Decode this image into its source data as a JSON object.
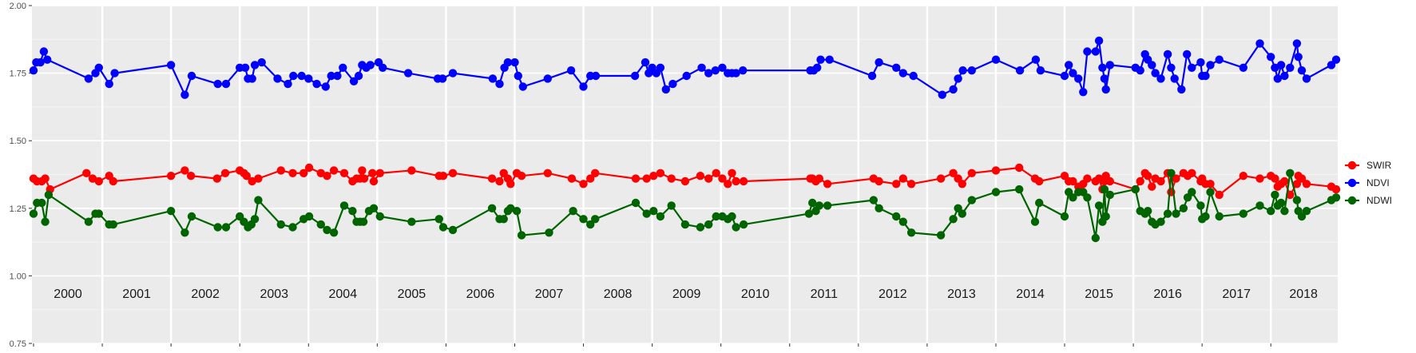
{
  "chart_data": {
    "type": "line",
    "title": "",
    "xlabel": "",
    "ylabel": "",
    "xlim": [
      2000.0,
      2018.95
    ],
    "ylim": [
      0.75,
      2.0
    ],
    "yticks": [
      "0.75",
      "1.00",
      "1.25",
      "1.50",
      "1.75",
      "2.00"
    ],
    "year_labels": [
      "2000",
      "2001",
      "2002",
      "2003",
      "2004",
      "2005",
      "2006",
      "2007",
      "2008",
      "2009",
      "2010",
      "2011",
      "2012",
      "2013",
      "2014",
      "2015",
      "2016",
      "2017",
      "2018"
    ],
    "grid": true,
    "legend_position": "right",
    "series": [
      {
        "name": "SWIR",
        "color": "#ff0000",
        "x": [
          2000.0,
          2000.05,
          2000.12,
          2000.17,
          2000.24,
          2000.77,
          2000.86,
          2000.95,
          2001.1,
          2001.16,
          2002.0,
          2002.2,
          2002.29,
          2002.67,
          2002.79,
          2003.0,
          2003.06,
          2003.1,
          2003.18,
          2003.27,
          2003.6,
          2003.77,
          2003.93,
          2004.01,
          2004.18,
          2004.27,
          2004.37,
          2004.52,
          2004.64,
          2004.7,
          2004.75,
          2004.78,
          2004.81,
          2004.93,
          2004.95,
          2005.04,
          2005.5,
          2005.9,
          2005.96,
          2006.1,
          2006.67,
          2006.78,
          2006.84,
          2006.9,
          2006.94,
          2007.03,
          2007.1,
          2007.48,
          2007.83,
          2008.0,
          2008.1,
          2008.17,
          2008.76,
          2008.92,
          2009.02,
          2009.12,
          2009.28,
          2009.48,
          2009.7,
          2009.82,
          2009.93,
          2010.02,
          2010.1,
          2010.16,
          2010.22,
          2010.33,
          2011.3,
          2011.33,
          2011.38,
          2011.43,
          2011.55,
          2012.22,
          2012.3,
          2012.55,
          2012.65,
          2012.77,
          2013.2,
          2013.38,
          2013.45,
          2013.51,
          2013.65,
          2014.0,
          2014.34,
          2014.57,
          2014.63,
          2015.0,
          2015.06,
          2015.12,
          2015.2,
          2015.27,
          2015.33,
          2015.45,
          2015.5,
          2015.55,
          2015.58,
          2015.6,
          2015.66,
          2016.03,
          2016.1,
          2016.17,
          2016.21,
          2016.27,
          2016.32,
          2016.4,
          2016.5,
          2016.55,
          2016.62,
          2016.73,
          2016.79,
          2016.85,
          2016.98,
          2017.0,
          2017.05,
          2017.12,
          2017.25,
          2017.6,
          2017.84,
          2018.0,
          2018.06,
          2018.1,
          2018.15,
          2018.2,
          2018.28,
          2018.38,
          2018.4,
          2018.45,
          2018.52,
          2018.88,
          2018.95
        ],
        "y": [
          1.36,
          1.35,
          1.35,
          1.36,
          1.32,
          1.38,
          1.36,
          1.35,
          1.37,
          1.35,
          1.37,
          1.39,
          1.37,
          1.36,
          1.38,
          1.39,
          1.38,
          1.37,
          1.35,
          1.36,
          1.39,
          1.38,
          1.38,
          1.4,
          1.38,
          1.37,
          1.39,
          1.38,
          1.35,
          1.36,
          1.36,
          1.39,
          1.36,
          1.38,
          1.35,
          1.38,
          1.39,
          1.37,
          1.37,
          1.38,
          1.36,
          1.35,
          1.38,
          1.36,
          1.34,
          1.38,
          1.37,
          1.38,
          1.36,
          1.34,
          1.36,
          1.38,
          1.36,
          1.36,
          1.37,
          1.38,
          1.36,
          1.35,
          1.37,
          1.36,
          1.38,
          1.36,
          1.34,
          1.38,
          1.35,
          1.35,
          1.36,
          1.36,
          1.35,
          1.36,
          1.34,
          1.36,
          1.35,
          1.34,
          1.36,
          1.34,
          1.36,
          1.38,
          1.36,
          1.34,
          1.38,
          1.39,
          1.4,
          1.36,
          1.35,
          1.37,
          1.35,
          1.35,
          1.33,
          1.34,
          1.36,
          1.35,
          1.36,
          1.32,
          1.35,
          1.37,
          1.35,
          1.32,
          1.35,
          1.38,
          1.37,
          1.33,
          1.36,
          1.35,
          1.38,
          1.31,
          1.36,
          1.38,
          1.37,
          1.38,
          1.35,
          1.36,
          1.34,
          1.34,
          1.3,
          1.37,
          1.36,
          1.37,
          1.36,
          1.33,
          1.34,
          1.35,
          1.3,
          1.34,
          1.37,
          1.36,
          1.34,
          1.33,
          1.32
        ],
        "_note": ""
      },
      {
        "name": "NDVI",
        "color": "#0000ff",
        "x": [
          2000.0,
          2000.04,
          2000.1,
          2000.15,
          2000.2,
          2000.8,
          2000.9,
          2000.95,
          2001.1,
          2001.18,
          2002.0,
          2002.2,
          2002.3,
          2002.68,
          2002.8,
          2003.0,
          2003.08,
          2003.12,
          2003.18,
          2003.22,
          2003.32,
          2003.55,
          2003.7,
          2003.78,
          2003.9,
          2004.0,
          2004.12,
          2004.25,
          2004.33,
          2004.42,
          2004.5,
          2004.66,
          2004.73,
          2004.78,
          2004.84,
          2004.9,
          2005.02,
          2005.08,
          2005.45,
          2005.88,
          2005.95,
          2006.1,
          2006.68,
          2006.78,
          2006.85,
          2006.9,
          2007.0,
          2007.05,
          2007.12,
          2007.48,
          2007.82,
          2008.0,
          2008.1,
          2008.18,
          2008.75,
          2008.9,
          2008.95,
          2009.0,
          2009.06,
          2009.12,
          2009.2,
          2009.3,
          2009.5,
          2009.72,
          2009.82,
          2009.92,
          2010.02,
          2010.1,
          2010.16,
          2010.22,
          2010.32,
          2011.3,
          2011.35,
          2011.4,
          2011.45,
          2011.58,
          2012.2,
          2012.3,
          2012.55,
          2012.65,
          2012.8,
          2013.22,
          2013.38,
          2013.45,
          2013.52,
          2013.65,
          2014.0,
          2014.35,
          2014.58,
          2014.65,
          2015.0,
          2015.06,
          2015.12,
          2015.2,
          2015.27,
          2015.33,
          2015.45,
          2015.5,
          2015.55,
          2015.58,
          2015.6,
          2015.66,
          2016.03,
          2016.1,
          2016.17,
          2016.21,
          2016.27,
          2016.32,
          2016.4,
          2016.5,
          2016.55,
          2016.6,
          2016.7,
          2016.78,
          2016.85,
          2016.98,
          2017.0,
          2017.05,
          2017.12,
          2017.25,
          2017.6,
          2017.84,
          2018.0,
          2018.06,
          2018.1,
          2018.15,
          2018.2,
          2018.28,
          2018.38,
          2018.4,
          2018.45,
          2018.52,
          2018.88,
          2018.95
        ],
        "y": [
          1.76,
          1.79,
          1.79,
          1.83,
          1.8,
          1.73,
          1.75,
          1.77,
          1.71,
          1.75,
          1.78,
          1.67,
          1.74,
          1.71,
          1.71,
          1.77,
          1.77,
          1.73,
          1.73,
          1.78,
          1.79,
          1.73,
          1.71,
          1.74,
          1.74,
          1.73,
          1.71,
          1.7,
          1.74,
          1.74,
          1.77,
          1.72,
          1.74,
          1.78,
          1.77,
          1.78,
          1.79,
          1.77,
          1.75,
          1.73,
          1.73,
          1.75,
          1.73,
          1.71,
          1.77,
          1.79,
          1.79,
          1.74,
          1.7,
          1.73,
          1.76,
          1.7,
          1.74,
          1.74,
          1.74,
          1.79,
          1.75,
          1.77,
          1.75,
          1.77,
          1.69,
          1.71,
          1.74,
          1.77,
          1.75,
          1.76,
          1.77,
          1.75,
          1.75,
          1.75,
          1.76,
          1.76,
          1.76,
          1.77,
          1.8,
          1.8,
          1.74,
          1.79,
          1.77,
          1.75,
          1.74,
          1.67,
          1.69,
          1.73,
          1.76,
          1.76,
          1.8,
          1.76,
          1.8,
          1.76,
          1.74,
          1.78,
          1.75,
          1.73,
          1.68,
          1.83,
          1.83,
          1.87,
          1.77,
          1.73,
          1.69,
          1.78,
          1.77,
          1.76,
          1.82,
          1.8,
          1.78,
          1.75,
          1.73,
          1.82,
          1.77,
          1.73,
          1.69,
          1.82,
          1.77,
          1.79,
          1.74,
          1.74,
          1.78,
          1.8,
          1.77,
          1.86,
          1.81,
          1.77,
          1.73,
          1.78,
          1.74,
          1.77,
          1.86,
          1.81,
          1.76,
          1.73,
          1.78,
          1.8
        ],
        "_note": ""
      },
      {
        "name": "NDWI",
        "color": "#006400",
        "x": [
          2000.0,
          2000.05,
          2000.12,
          2000.17,
          2000.22,
          2000.8,
          2000.9,
          2000.95,
          2001.1,
          2001.16,
          2002.0,
          2002.2,
          2002.3,
          2002.68,
          2002.8,
          2003.0,
          2003.06,
          2003.12,
          2003.17,
          2003.22,
          2003.27,
          2003.6,
          2003.77,
          2003.93,
          2004.01,
          2004.18,
          2004.27,
          2004.37,
          2004.52,
          2004.64,
          2004.7,
          2004.75,
          2004.8,
          2004.88,
          2004.95,
          2005.04,
          2005.5,
          2005.9,
          2005.96,
          2006.1,
          2006.67,
          2006.78,
          2006.84,
          2006.9,
          2006.94,
          2007.03,
          2007.1,
          2007.5,
          2007.85,
          2008.0,
          2008.1,
          2008.17,
          2008.76,
          2008.92,
          2009.02,
          2009.12,
          2009.28,
          2009.48,
          2009.7,
          2009.82,
          2009.93,
          2010.02,
          2010.1,
          2010.16,
          2010.22,
          2010.33,
          2011.28,
          2011.33,
          2011.38,
          2011.43,
          2011.55,
          2012.22,
          2012.3,
          2012.55,
          2012.65,
          2012.77,
          2013.2,
          2013.38,
          2013.45,
          2013.51,
          2013.65,
          2014.0,
          2014.34,
          2014.57,
          2014.63,
          2015.0,
          2015.06,
          2015.12,
          2015.2,
          2015.27,
          2015.33,
          2015.45,
          2015.5,
          2015.55,
          2015.58,
          2015.6,
          2015.66,
          2016.03,
          2016.1,
          2016.17,
          2016.21,
          2016.27,
          2016.32,
          2016.4,
          2016.5,
          2016.55,
          2016.62,
          2016.73,
          2016.79,
          2016.85,
          2016.98,
          2017.0,
          2017.05,
          2017.12,
          2017.25,
          2017.6,
          2017.84,
          2018.0,
          2018.06,
          2018.1,
          2018.15,
          2018.2,
          2018.28,
          2018.38,
          2018.4,
          2018.45,
          2018.52,
          2018.88,
          2018.95
        ],
        "y": [
          1.23,
          1.27,
          1.27,
          1.2,
          1.3,
          1.2,
          1.23,
          1.23,
          1.19,
          1.19,
          1.24,
          1.16,
          1.22,
          1.18,
          1.18,
          1.22,
          1.2,
          1.18,
          1.19,
          1.21,
          1.28,
          1.19,
          1.18,
          1.21,
          1.22,
          1.19,
          1.17,
          1.16,
          1.26,
          1.24,
          1.2,
          1.2,
          1.2,
          1.24,
          1.25,
          1.22,
          1.2,
          1.21,
          1.18,
          1.17,
          1.25,
          1.21,
          1.21,
          1.24,
          1.25,
          1.24,
          1.15,
          1.16,
          1.24,
          1.21,
          1.19,
          1.21,
          1.27,
          1.23,
          1.24,
          1.22,
          1.26,
          1.19,
          1.18,
          1.19,
          1.22,
          1.22,
          1.21,
          1.22,
          1.18,
          1.19,
          1.23,
          1.27,
          1.24,
          1.26,
          1.26,
          1.28,
          1.25,
          1.22,
          1.2,
          1.16,
          1.15,
          1.21,
          1.25,
          1.23,
          1.28,
          1.31,
          1.32,
          1.2,
          1.27,
          1.22,
          1.31,
          1.29,
          1.31,
          1.31,
          1.29,
          1.14,
          1.26,
          1.2,
          1.32,
          1.22,
          1.3,
          1.32,
          1.24,
          1.23,
          1.24,
          1.2,
          1.19,
          1.2,
          1.23,
          1.38,
          1.23,
          1.25,
          1.29,
          1.31,
          1.26,
          1.21,
          1.22,
          1.31,
          1.22,
          1.23,
          1.26,
          1.24,
          1.3,
          1.26,
          1.27,
          1.24,
          1.38,
          1.28,
          1.24,
          1.22,
          1.24,
          1.28,
          1.29
        ],
        "_note": ""
      }
    ]
  }
}
